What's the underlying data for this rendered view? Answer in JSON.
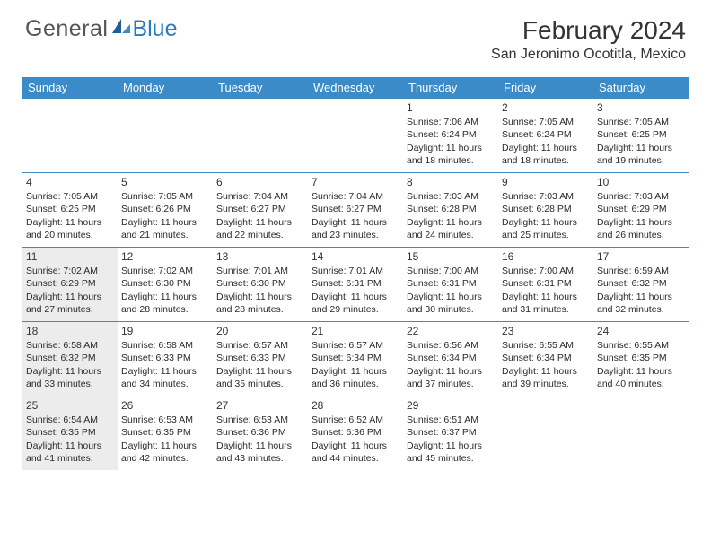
{
  "logo": {
    "text1": "General",
    "text2": "Blue",
    "brand_color": "#2b7abf"
  },
  "header": {
    "title": "February 2024",
    "location": "San Jeronimo Ocotitla, Mexico"
  },
  "colors": {
    "header_bar": "#3b8bc8",
    "row_border": "#3b8bc8",
    "shaded_bg": "#ececec",
    "text": "#2a2a2a"
  },
  "daysOfWeek": [
    "Sunday",
    "Monday",
    "Tuesday",
    "Wednesday",
    "Thursday",
    "Friday",
    "Saturday"
  ],
  "weeks": [
    [
      {
        "empty": true
      },
      {
        "empty": true
      },
      {
        "empty": true
      },
      {
        "empty": true
      },
      {
        "day": "1",
        "sunrise": "Sunrise: 7:06 AM",
        "sunset": "Sunset: 6:24 PM",
        "daylight1": "Daylight: 11 hours",
        "daylight2": "and 18 minutes."
      },
      {
        "day": "2",
        "sunrise": "Sunrise: 7:05 AM",
        "sunset": "Sunset: 6:24 PM",
        "daylight1": "Daylight: 11 hours",
        "daylight2": "and 18 minutes."
      },
      {
        "day": "3",
        "sunrise": "Sunrise: 7:05 AM",
        "sunset": "Sunset: 6:25 PM",
        "daylight1": "Daylight: 11 hours",
        "daylight2": "and 19 minutes."
      }
    ],
    [
      {
        "day": "4",
        "sunrise": "Sunrise: 7:05 AM",
        "sunset": "Sunset: 6:25 PM",
        "daylight1": "Daylight: 11 hours",
        "daylight2": "and 20 minutes."
      },
      {
        "day": "5",
        "sunrise": "Sunrise: 7:05 AM",
        "sunset": "Sunset: 6:26 PM",
        "daylight1": "Daylight: 11 hours",
        "daylight2": "and 21 minutes."
      },
      {
        "day": "6",
        "sunrise": "Sunrise: 7:04 AM",
        "sunset": "Sunset: 6:27 PM",
        "daylight1": "Daylight: 11 hours",
        "daylight2": "and 22 minutes."
      },
      {
        "day": "7",
        "sunrise": "Sunrise: 7:04 AM",
        "sunset": "Sunset: 6:27 PM",
        "daylight1": "Daylight: 11 hours",
        "daylight2": "and 23 minutes."
      },
      {
        "day": "8",
        "sunrise": "Sunrise: 7:03 AM",
        "sunset": "Sunset: 6:28 PM",
        "daylight1": "Daylight: 11 hours",
        "daylight2": "and 24 minutes."
      },
      {
        "day": "9",
        "sunrise": "Sunrise: 7:03 AM",
        "sunset": "Sunset: 6:28 PM",
        "daylight1": "Daylight: 11 hours",
        "daylight2": "and 25 minutes."
      },
      {
        "day": "10",
        "sunrise": "Sunrise: 7:03 AM",
        "sunset": "Sunset: 6:29 PM",
        "daylight1": "Daylight: 11 hours",
        "daylight2": "and 26 minutes."
      }
    ],
    [
      {
        "day": "11",
        "shaded": true,
        "sunrise": "Sunrise: 7:02 AM",
        "sunset": "Sunset: 6:29 PM",
        "daylight1": "Daylight: 11 hours",
        "daylight2": "and 27 minutes."
      },
      {
        "day": "12",
        "sunrise": "Sunrise: 7:02 AM",
        "sunset": "Sunset: 6:30 PM",
        "daylight1": "Daylight: 11 hours",
        "daylight2": "and 28 minutes."
      },
      {
        "day": "13",
        "sunrise": "Sunrise: 7:01 AM",
        "sunset": "Sunset: 6:30 PM",
        "daylight1": "Daylight: 11 hours",
        "daylight2": "and 28 minutes."
      },
      {
        "day": "14",
        "sunrise": "Sunrise: 7:01 AM",
        "sunset": "Sunset: 6:31 PM",
        "daylight1": "Daylight: 11 hours",
        "daylight2": "and 29 minutes."
      },
      {
        "day": "15",
        "sunrise": "Sunrise: 7:00 AM",
        "sunset": "Sunset: 6:31 PM",
        "daylight1": "Daylight: 11 hours",
        "daylight2": "and 30 minutes."
      },
      {
        "day": "16",
        "sunrise": "Sunrise: 7:00 AM",
        "sunset": "Sunset: 6:31 PM",
        "daylight1": "Daylight: 11 hours",
        "daylight2": "and 31 minutes."
      },
      {
        "day": "17",
        "sunrise": "Sunrise: 6:59 AM",
        "sunset": "Sunset: 6:32 PM",
        "daylight1": "Daylight: 11 hours",
        "daylight2": "and 32 minutes."
      }
    ],
    [
      {
        "day": "18",
        "shaded": true,
        "sunrise": "Sunrise: 6:58 AM",
        "sunset": "Sunset: 6:32 PM",
        "daylight1": "Daylight: 11 hours",
        "daylight2": "and 33 minutes."
      },
      {
        "day": "19",
        "sunrise": "Sunrise: 6:58 AM",
        "sunset": "Sunset: 6:33 PM",
        "daylight1": "Daylight: 11 hours",
        "daylight2": "and 34 minutes."
      },
      {
        "day": "20",
        "sunrise": "Sunrise: 6:57 AM",
        "sunset": "Sunset: 6:33 PM",
        "daylight1": "Daylight: 11 hours",
        "daylight2": "and 35 minutes."
      },
      {
        "day": "21",
        "sunrise": "Sunrise: 6:57 AM",
        "sunset": "Sunset: 6:34 PM",
        "daylight1": "Daylight: 11 hours",
        "daylight2": "and 36 minutes."
      },
      {
        "day": "22",
        "sunrise": "Sunrise: 6:56 AM",
        "sunset": "Sunset: 6:34 PM",
        "daylight1": "Daylight: 11 hours",
        "daylight2": "and 37 minutes."
      },
      {
        "day": "23",
        "sunrise": "Sunrise: 6:55 AM",
        "sunset": "Sunset: 6:34 PM",
        "daylight1": "Daylight: 11 hours",
        "daylight2": "and 39 minutes."
      },
      {
        "day": "24",
        "sunrise": "Sunrise: 6:55 AM",
        "sunset": "Sunset: 6:35 PM",
        "daylight1": "Daylight: 11 hours",
        "daylight2": "and 40 minutes."
      }
    ],
    [
      {
        "day": "25",
        "shaded": true,
        "sunrise": "Sunrise: 6:54 AM",
        "sunset": "Sunset: 6:35 PM",
        "daylight1": "Daylight: 11 hours",
        "daylight2": "and 41 minutes."
      },
      {
        "day": "26",
        "sunrise": "Sunrise: 6:53 AM",
        "sunset": "Sunset: 6:35 PM",
        "daylight1": "Daylight: 11 hours",
        "daylight2": "and 42 minutes."
      },
      {
        "day": "27",
        "sunrise": "Sunrise: 6:53 AM",
        "sunset": "Sunset: 6:36 PM",
        "daylight1": "Daylight: 11 hours",
        "daylight2": "and 43 minutes."
      },
      {
        "day": "28",
        "sunrise": "Sunrise: 6:52 AM",
        "sunset": "Sunset: 6:36 PM",
        "daylight1": "Daylight: 11 hours",
        "daylight2": "and 44 minutes."
      },
      {
        "day": "29",
        "sunrise": "Sunrise: 6:51 AM",
        "sunset": "Sunset: 6:37 PM",
        "daylight1": "Daylight: 11 hours",
        "daylight2": "and 45 minutes."
      },
      {
        "empty": true
      },
      {
        "empty": true
      }
    ]
  ]
}
